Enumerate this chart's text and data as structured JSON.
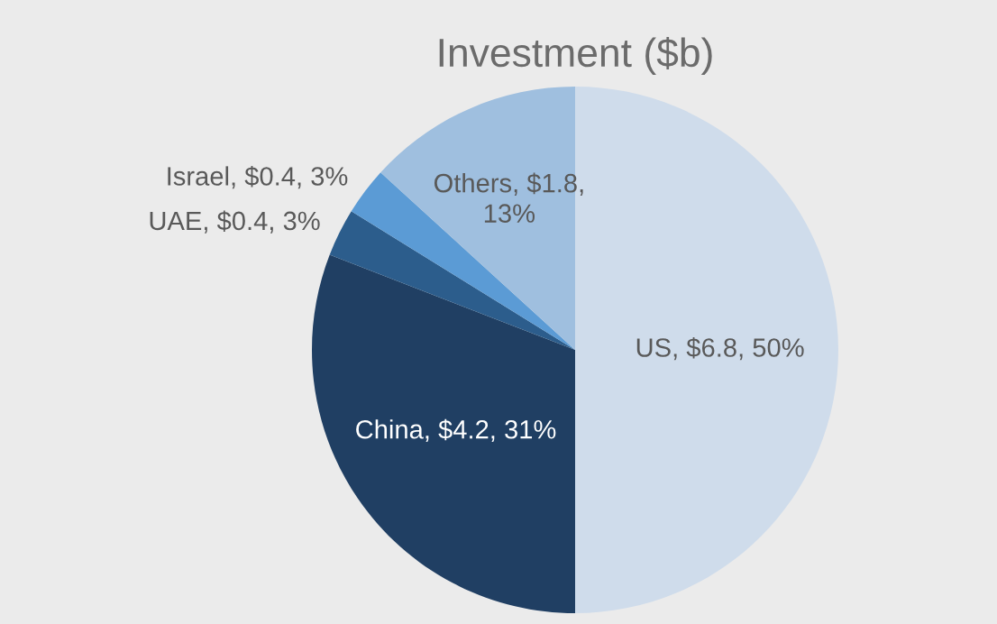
{
  "chart_data": {
    "type": "pie",
    "title": "Investment ($b)",
    "categories": [
      "US",
      "China",
      "UAE",
      "Israel",
      "Others"
    ],
    "values": [
      6.8,
      4.2,
      0.4,
      0.4,
      1.8
    ],
    "colors": [
      "#cfdceb",
      "#203f63",
      "#2c5d8c",
      "#5b9bd5",
      "#9fbfdf"
    ],
    "value_labels": [
      "$6.8, 50%",
      "$4.2, 31%",
      "$0.4, 3%",
      "$0.4, 3%",
      "$1.8,\n13%"
    ],
    "legend": false
  }
}
